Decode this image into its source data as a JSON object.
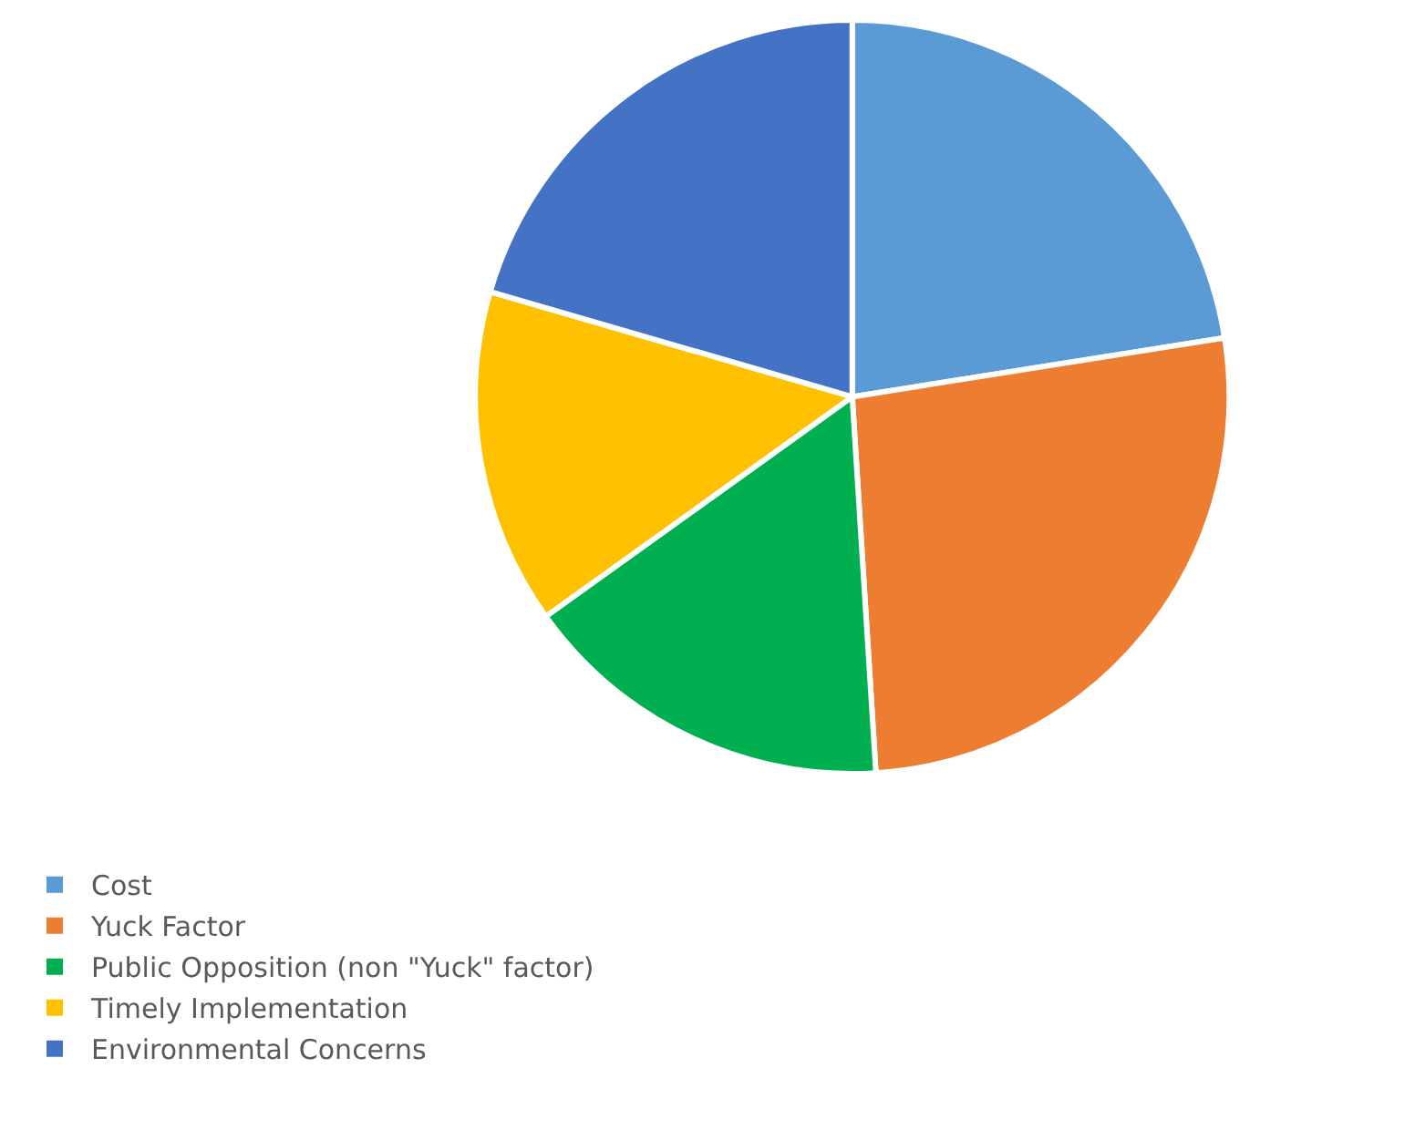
{
  "chart_data": {
    "type": "pie",
    "categories": [
      "Cost",
      "Yuck Factor",
      "Public Opposition (non \"Yuck\" factor)",
      "Timely Implementation",
      "Environmental Concerns"
    ],
    "values": [
      22.5,
      26.5,
      16.1,
      14.4,
      20.5
    ],
    "colors": [
      "#5b9bd5",
      "#ed7d31",
      "#00b050",
      "#ffc000",
      "#4472c4"
    ],
    "legend": "bottom"
  }
}
